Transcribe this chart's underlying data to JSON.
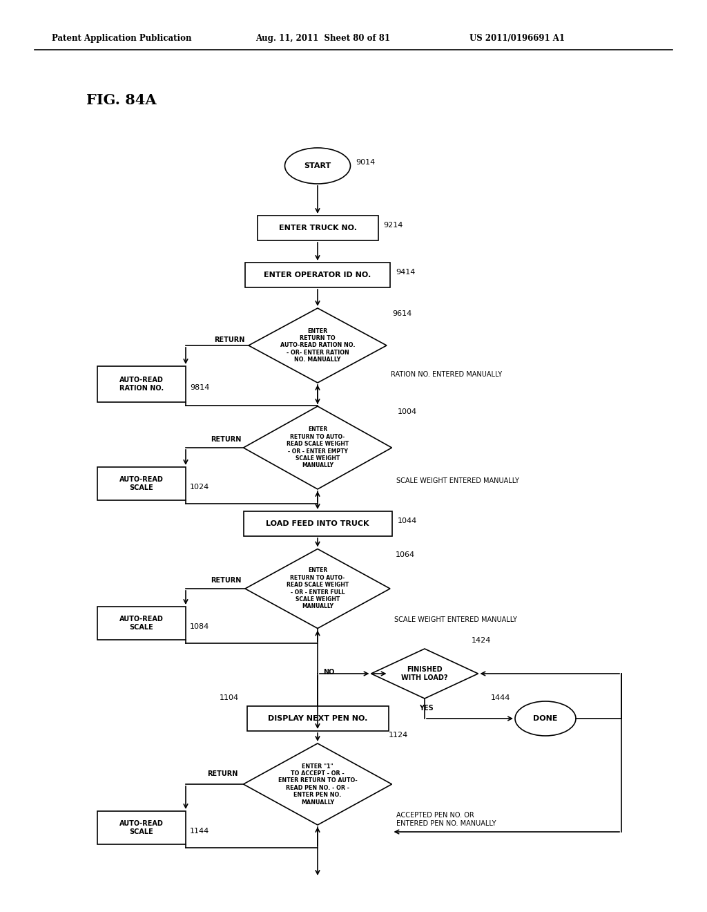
{
  "title": "FIG. 84A",
  "header_left": "Patent Application Publication",
  "header_mid": "Aug. 11, 2011  Sheet 80 of 81",
  "header_right": "US 2011/0196691 A1",
  "bg_color": "#ffffff",
  "line_color": "#000000",
  "figsize": [
    10.24,
    13.2
  ],
  "dpi": 100
}
